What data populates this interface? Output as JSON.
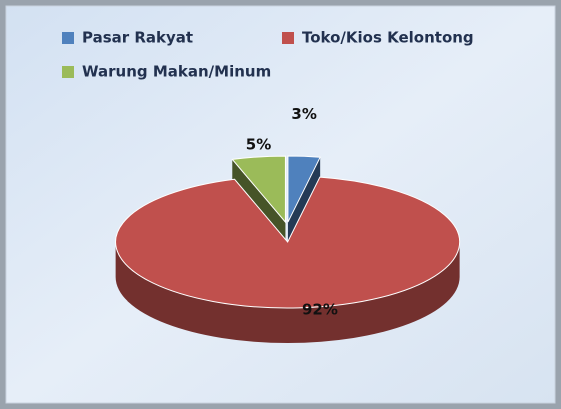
{
  "chart_data": {
    "type": "pie",
    "categories": [
      "Pasar Rakyat",
      "Toko/Kios Kelontong",
      "Warung Makan/Minum"
    ],
    "values": [
      3,
      92,
      5
    ],
    "value_labels": [
      "3%",
      "92%",
      "5%"
    ],
    "colors": [
      "#4f81bd",
      "#c0504d",
      "#9bbb59"
    ],
    "legend": "top"
  }
}
